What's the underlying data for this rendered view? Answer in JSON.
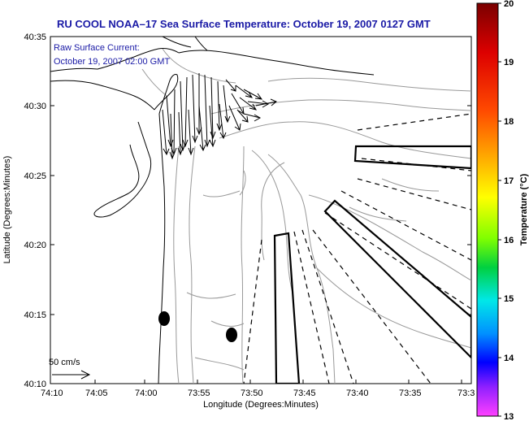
{
  "title": "RU COOL  NOAA–17  Sea Surface Temperature:  October 19, 2007 0127 GMT",
  "current_note": {
    "line1": "Raw Surface Current:",
    "line2": "October 19, 2007 02:00 GMT"
  },
  "axes": {
    "xlabel": "Longitude (Degrees:Minutes)",
    "ylabel": "Latitude (Degrees:Minutes)",
    "xticks": [
      "74:10",
      "74:05",
      "74:00",
      "73:55",
      "73:50",
      "73:45",
      "73:40",
      "73:35",
      "73:3"
    ],
    "yticks": [
      "40:35",
      "40:30",
      "40:25",
      "40:20",
      "40:15",
      "40:10"
    ]
  },
  "colorbar": {
    "label": "Temperature (°C)",
    "ticks": [
      "20",
      "19",
      "18",
      "17",
      "16",
      "15",
      "14",
      "13"
    ],
    "range": [
      13,
      20
    ]
  },
  "scale": {
    "label": "50 cm/s"
  },
  "colors": {
    "title": "#1a1aa6",
    "coast": "#000000",
    "bathymetry": "#999999"
  }
}
